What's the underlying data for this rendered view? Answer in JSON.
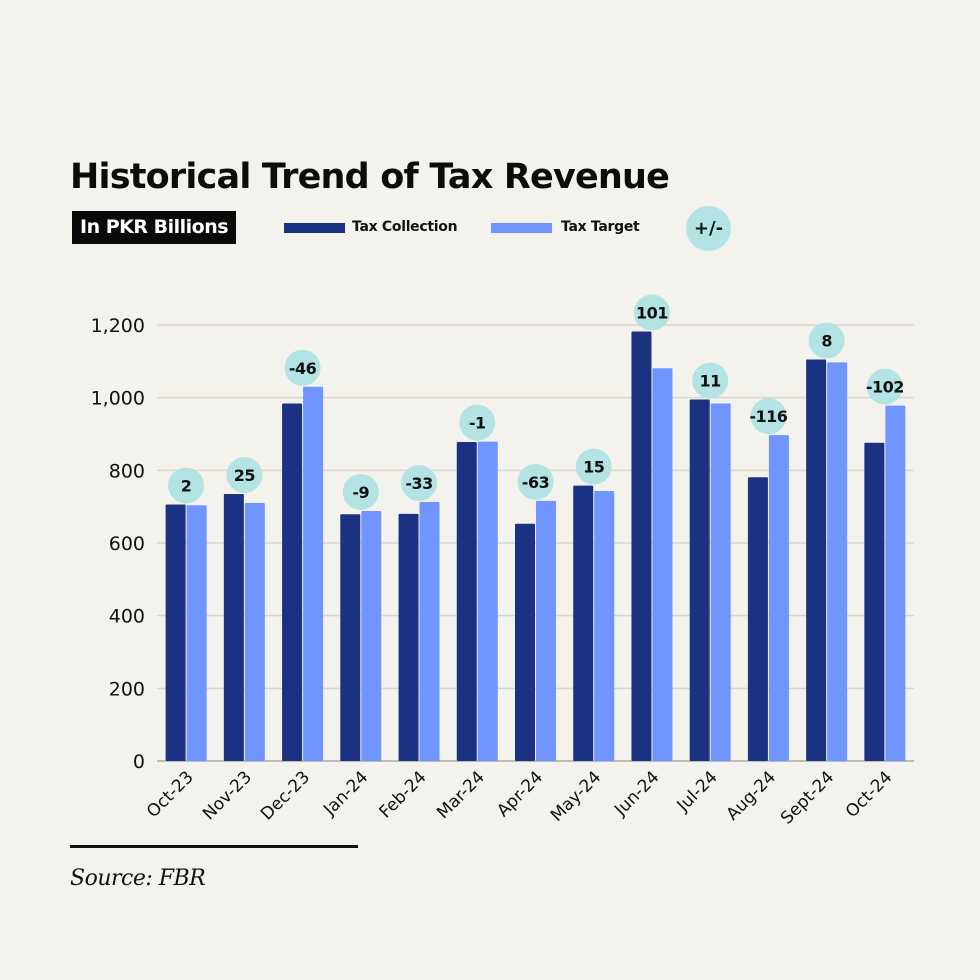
{
  "header": {
    "title": "Historical Trend of Tax Revenue",
    "unit": "In PKR Billions"
  },
  "legend": {
    "items": [
      {
        "label": "Tax Collection",
        "color": "#1b3181"
      },
      {
        "label": "Tax Target",
        "color": "#7095ff"
      }
    ],
    "badge_label": "+/-",
    "badge_color": "#b3e4e3"
  },
  "footer": {
    "source": "Source: FBR"
  },
  "chart_data": {
    "type": "bar",
    "title": "Historical Trend of Tax Revenue",
    "subtitle": "In PKR Billions",
    "xlabel": "",
    "ylabel": "",
    "ylim": [
      0,
      1200
    ],
    "yticks": [
      0,
      200,
      400,
      600,
      800,
      1000,
      1200
    ],
    "ytick_labels": [
      "0",
      "200",
      "400",
      "600",
      "800",
      "1,000",
      "1,200"
    ],
    "grid": true,
    "legend_position": "top",
    "categories": [
      "Oct-23",
      "Nov-23",
      "Dec-23",
      "Jan-24",
      "Feb-24",
      "Mar-24",
      "Apr-24",
      "May-24",
      "Jun-24",
      "Jul-24",
      "Aug-24",
      "Sept-24",
      "Oct-24"
    ],
    "series": [
      {
        "name": "Tax Collection",
        "color": "#1b3181",
        "values": [
          706,
          735,
          984,
          679,
          680,
          878,
          653,
          758,
          1182,
          995,
          781,
          1105,
          876
        ]
      },
      {
        "name": "Tax Target",
        "color": "#7095ff",
        "values": [
          704,
          710,
          1030,
          688,
          713,
          879,
          716,
          743,
          1081,
          984,
          897,
          1097,
          978
        ]
      }
    ],
    "difference_labels": [
      "2",
      "25",
      "-46",
      "-9",
      "-33",
      "-1",
      "-63",
      "15",
      "101",
      "11",
      "-116",
      "8",
      "-102"
    ]
  }
}
